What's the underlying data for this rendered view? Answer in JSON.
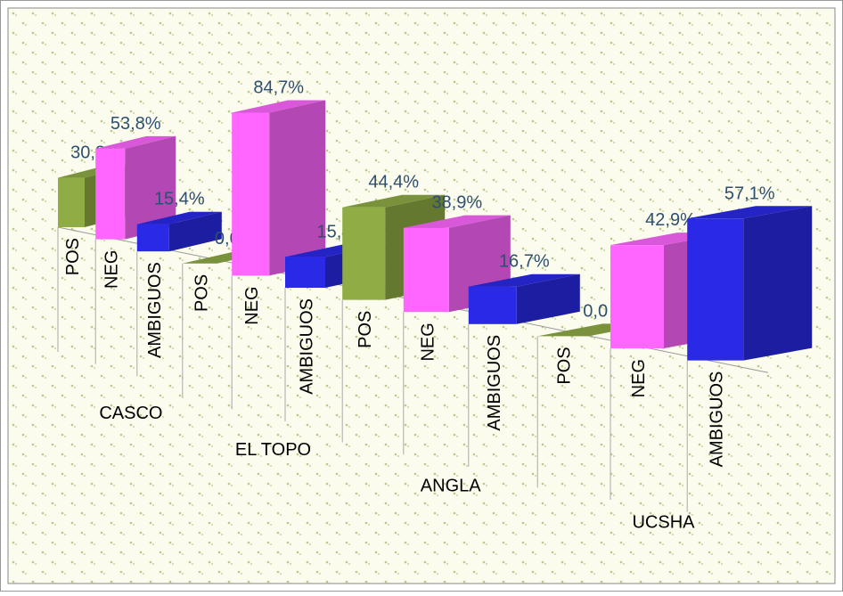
{
  "chart_data": {
    "type": "bar3d",
    "categories": [
      "CASCO",
      "EL TOPO",
      "ANGLA",
      "UCSHA"
    ],
    "series": [
      {
        "name": "POS",
        "color": "#8fac45",
        "values": [
          30.8,
          0.0,
          44.4,
          0.0
        ],
        "value_labels": [
          "30,8%",
          "0,0",
          "44,4%",
          "0,0"
        ]
      },
      {
        "name": "NEG",
        "color": "#ff66ff",
        "values": [
          53.8,
          84.7,
          38.9,
          42.9
        ],
        "value_labels": [
          "53,8%",
          "84,7%",
          "38,9%",
          "42,9%"
        ]
      },
      {
        "name": "AMBIGUOS",
        "color": "#2a2ae6",
        "values": [
          15.4,
          15.4,
          16.7,
          57.1
        ],
        "value_labels": [
          "15,4%",
          "15,4",
          "16,7%",
          "57,1%"
        ]
      }
    ]
  }
}
